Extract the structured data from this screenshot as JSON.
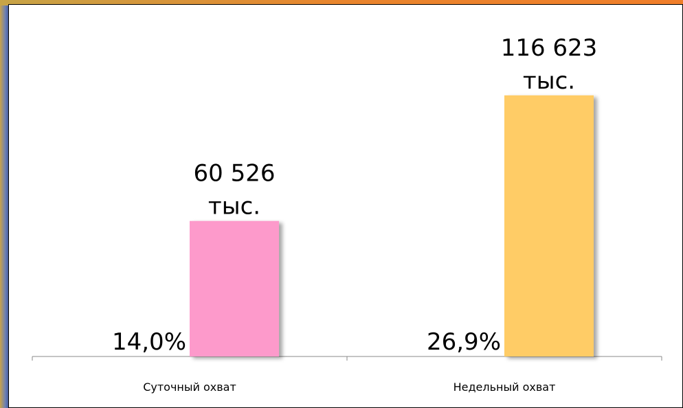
{
  "chart_data": {
    "type": "bar",
    "categories": [
      "Суточный охват",
      "Недельный охват"
    ],
    "values": [
      60526,
      116623
    ],
    "value_labels": [
      [
        "60 526",
        "тыс."
      ],
      [
        "116 623",
        "тыс."
      ]
    ],
    "shares": [
      14.0,
      26.9
    ],
    "share_labels": [
      "14,0%",
      "26,9%"
    ],
    "colors": [
      "#fd9acb",
      "#ffcc66"
    ],
    "ylim": [
      0,
      150000
    ]
  }
}
